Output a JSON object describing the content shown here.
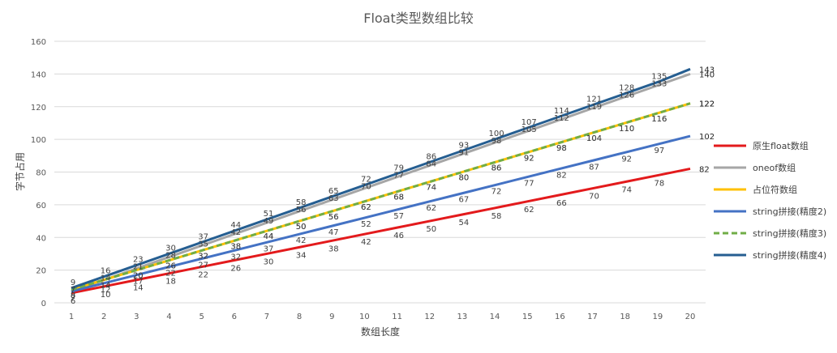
{
  "chart_data": {
    "type": "line",
    "title": "Float类型数组比较",
    "xlabel": "数组长度",
    "ylabel": "字节占用",
    "x": [
      1,
      2,
      3,
      4,
      5,
      6,
      7,
      8,
      9,
      10,
      11,
      12,
      13,
      14,
      15,
      16,
      17,
      18,
      19,
      20
    ],
    "ylim": [
      0,
      160
    ],
    "yticks": [
      0,
      20,
      40,
      60,
      80,
      100,
      120,
      140,
      160
    ],
    "grid": true,
    "legend_position": "right",
    "series": [
      {
        "name": "原生float数组",
        "color": "#e31a1c",
        "dashed": false,
        "values": [
          6,
          10,
          14,
          18,
          22,
          26,
          30,
          34,
          38,
          42,
          46,
          50,
          54,
          58,
          62,
          66,
          70,
          74,
          78,
          82
        ]
      },
      {
        "name": "oneof数组",
        "color": "#a6a6a6",
        "dashed": false,
        "values": [
          7,
          14,
          21,
          28,
          35,
          42,
          49,
          56,
          63,
          70,
          77,
          84,
          91,
          98,
          105,
          112,
          119,
          126,
          133,
          140
        ]
      },
      {
        "name": "占位符数组",
        "color": "#ffc000",
        "dashed": false,
        "values": [
          8,
          14,
          20,
          26,
          32,
          38,
          44,
          50,
          56,
          62,
          68,
          74,
          80,
          86,
          92,
          98,
          104,
          110,
          116,
          122
        ]
      },
      {
        "name": "string拼接(精度2)",
        "color": "#4472c4",
        "dashed": false,
        "values": [
          7,
          12,
          17,
          22,
          27,
          32,
          37,
          42,
          47,
          52,
          57,
          62,
          67,
          72,
          77,
          82,
          87,
          92,
          97,
          102
        ]
      },
      {
        "name": "string拼接(精度3)",
        "color": "#70ad47",
        "dashed": true,
        "values": [
          8,
          14,
          20,
          26,
          32,
          38,
          44,
          50,
          56,
          62,
          68,
          74,
          80,
          86,
          92,
          98,
          104,
          110,
          116,
          122
        ]
      },
      {
        "name": "string拼接(精度4)",
        "color": "#255e91",
        "dashed": false,
        "values": [
          9,
          16,
          23,
          30,
          37,
          44,
          51,
          58,
          65,
          72,
          79,
          86,
          93,
          100,
          107,
          114,
          121,
          128,
          135,
          143
        ]
      }
    ]
  }
}
